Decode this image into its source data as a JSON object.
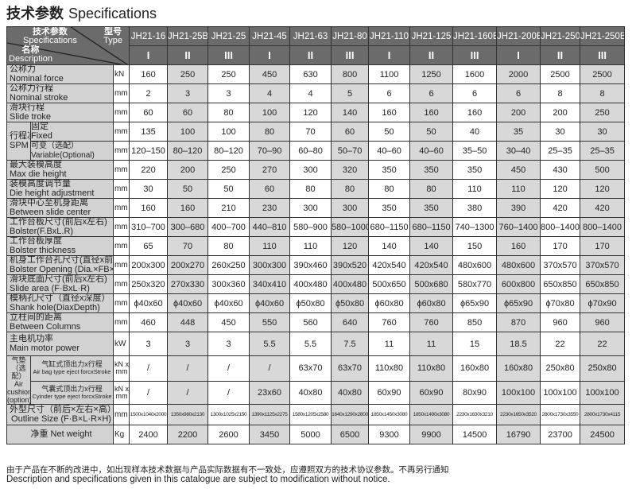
{
  "title": {
    "cn": "技术参数",
    "en": "Specifications"
  },
  "header": {
    "spec_cn": "技术参数",
    "spec_en": "Specifications",
    "type_cn": "型号",
    "type_en": "Type",
    "desc_cn": "名称",
    "desc_en": "Description",
    "models": [
      "JH21-16",
      "JH21-25B",
      "JH21-25",
      "JH21-45",
      "JH21-63",
      "JH21-80",
      "JH21-110",
      "JH21-125",
      "JH21-160B",
      "JH21-200B",
      "JH21-250",
      "JH21-250B"
    ],
    "types": [
      "I",
      "II",
      "III",
      "I",
      "II",
      "III",
      "I",
      "II",
      "III",
      "I",
      "II",
      "III"
    ]
  },
  "rows_a": [
    {
      "cn": "公称力",
      "en": "Nominal force",
      "unit": "kN",
      "values": [
        "160",
        "250",
        "250",
        "450",
        "630",
        "800",
        "1100",
        "1250",
        "1600",
        "2000",
        "2500",
        "2500"
      ]
    },
    {
      "cn": "公称力行程",
      "en": "Nominal stroke",
      "unit": "mm",
      "values": [
        "2",
        "3",
        "3",
        "4",
        "4",
        "5",
        "6",
        "6",
        "6",
        "6",
        "8",
        "8"
      ]
    },
    {
      "cn": "滑块行程",
      "en": "Slide troke",
      "unit": "mm",
      "values": [
        "60",
        "60",
        "80",
        "100",
        "120",
        "140",
        "160",
        "160",
        "160",
        "200",
        "200",
        "250"
      ]
    }
  ],
  "spm": {
    "cn": "行程次数",
    "en": "SPM",
    "fixed_cn": "固定",
    "fixed_en": "Fixed",
    "unit_fixed": "mm⁻¹",
    "var_cn": "可变（选配）",
    "var_en": "Variable(Optional)",
    "unit_var": "mm⁻¹",
    "fixed": [
      "135",
      "100",
      "100",
      "80",
      "70",
      "60",
      "50",
      "50",
      "40",
      "35",
      "30",
      "30"
    ],
    "variable": [
      "120–150",
      "80–120",
      "80–120",
      "70–90",
      "60–80",
      "50–70",
      "40–60",
      "40–60",
      "35–50",
      "30–40",
      "25–35",
      "25–35"
    ]
  },
  "rows_b": [
    {
      "cn": "最大装模高度",
      "en": "Max die height",
      "unit": "mm",
      "values": [
        "220",
        "200",
        "250",
        "270",
        "300",
        "320",
        "350",
        "350",
        "350",
        "450",
        "430",
        "500"
      ]
    },
    {
      "cn": "装模高度调节量",
      "en": "Die height adjustment",
      "unit": "mm",
      "values": [
        "30",
        "50",
        "50",
        "60",
        "80",
        "80",
        "80",
        "80",
        "110",
        "110",
        "120",
        "120"
      ]
    },
    {
      "cn": "滑块中心至机身距离",
      "en": "Between slide center",
      "unit": "mm",
      "values": [
        "160",
        "160",
        "210",
        "230",
        "300",
        "300",
        "350",
        "350",
        "380",
        "390",
        "420",
        "420"
      ]
    },
    {
      "cn": "工作台板尺寸(前后x左右)",
      "en": "Bolster(F.BxL.R)",
      "unit": "mm",
      "values": [
        "310–700",
        "300–680",
        "400–700",
        "440–810",
        "580–900",
        "580–1000",
        "680–1150",
        "680–1150",
        "740–1300",
        "760–1400",
        "800–1400",
        "800–1400"
      ]
    },
    {
      "cn": "工作台板厚度",
      "en": "Bolster thickness",
      "unit": "mm",
      "values": [
        "65",
        "70",
        "80",
        "110",
        "110",
        "120",
        "140",
        "140",
        "150",
        "160",
        "170",
        "170"
      ]
    },
    {
      "cn": "机身工作台孔尺寸(直径x前后x左右)",
      "en": "Bolster Opening (Dia.×FB×LR)",
      "unit": "mm",
      "values": [
        "200x300",
        "200x270",
        "260x250",
        "300x300",
        "390x460",
        "390x520",
        "420x540",
        "420x540",
        "480x600",
        "480x600",
        "370x570",
        "370x570"
      ]
    },
    {
      "cn": "滑块底面尺寸(前后x左右)",
      "en": "Slide area (F·BxL·R)",
      "unit": "mm",
      "values": [
        "250x320",
        "270x330",
        "300x360",
        "340x410",
        "400x480",
        "400x480",
        "500x650",
        "500x680",
        "580x770",
        "600x800",
        "650x850",
        "650x850"
      ]
    },
    {
      "cn": "模柄孔尺寸（直径x深度）",
      "en": "Shank hole(DiaxDepth)",
      "unit": "mm",
      "values": [
        "ϕ40x60",
        "ϕ40x60",
        "ϕ40x60",
        "ϕ40x60",
        "ϕ50x80",
        "ϕ50x80",
        "ϕ60x80",
        "ϕ60x80",
        "ϕ65x90",
        "ϕ65x90",
        "ϕ70x80",
        "ϕ70x90"
      ]
    },
    {
      "cn": "立柱间的距离",
      "en": "Between Columns",
      "unit": "mm",
      "values": [
        "460",
        "448",
        "450",
        "550",
        "560",
        "640",
        "760",
        "760",
        "850",
        "870",
        "960",
        "960"
      ]
    },
    {
      "cn": "主电机功率",
      "en": "Main motor power",
      "unit": "kW",
      "values": [
        "3",
        "3",
        "3",
        "5.5",
        "5.5",
        "7.5",
        "11",
        "11",
        "15",
        "18.5",
        "22",
        "22"
      ]
    }
  ],
  "air_cushion": {
    "cn": "气垫（选配）",
    "en": "Air cushion (option)",
    "unit": "kN x mm",
    "airbag_cn": "气缸式顶出力x行程",
    "airbag_en": "Air bag type eject forcxStroke",
    "airbag": [
      "/",
      "/",
      "/",
      "/",
      "63x70",
      "63x70",
      "110x80",
      "110x80",
      "160x80",
      "160x80",
      "250x80",
      "250x80"
    ],
    "cyl_cn": "气囊式顶出力x行程",
    "cyl_en": "Cyinder type eject forcxStroke",
    "cyl": [
      "/",
      "/",
      "/",
      "23x60",
      "40x80",
      "40x80",
      "60x90",
      "60x90",
      "80x90",
      "100x100",
      "100x100",
      "100x100"
    ]
  },
  "outline": {
    "cn": "外型尺寸（前后×左右×高）",
    "en": "Outline Size (F·B×L·R×H)",
    "unit": "mm",
    "values": [
      "1500x1040x2000",
      "1350x980x2130",
      "1300x1025x2150",
      "1390x1125x2275",
      "1580x1205x2580",
      "1640x1290x2800",
      "1850x1450x3080",
      "1850x1490x3080",
      "2230x1630x3210",
      "2230x1650x3520",
      "2800x1730x3550",
      "2800x1730x4115"
    ]
  },
  "weight": {
    "cn": "净重",
    "en": "Net weight",
    "unit": "Kg",
    "values": [
      "2400",
      "2200",
      "2600",
      "3450",
      "5000",
      "6500",
      "9300",
      "9900",
      "14500",
      "16790",
      "23700",
      "24500"
    ]
  },
  "footnote": {
    "cn": "由于产品在不断的改进中，如出现样本技术数据与产品实际数据有不一致处，应遵照双方的技术协议参数。不再另行通知",
    "en": "Description and specifications given in this catalogue are subject to modification without notice."
  },
  "colors": {
    "header_bg": "#6b6b6b",
    "label_bg": "#d2d2d2",
    "alt_cell_bg": "#d8d8d8",
    "border": "#333333"
  }
}
